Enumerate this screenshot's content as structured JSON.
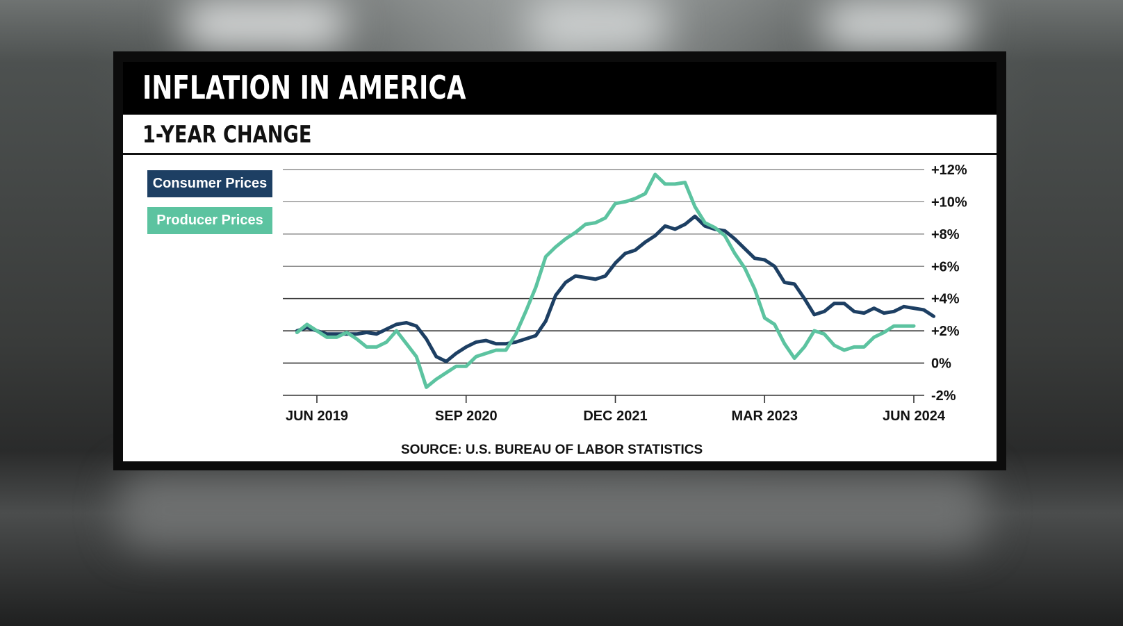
{
  "header": {
    "title": "INFLATION IN AMERICA",
    "subtitle": "1-YEAR CHANGE"
  },
  "legend": {
    "consumer_label": "Consumer Prices",
    "producer_label": "Producer Prices"
  },
  "source": "SOURCE: U.S. BUREAU OF LABOR STATISTICS",
  "colors": {
    "consumer": "#1d3f63",
    "producer": "#5cc3a0",
    "header_bg": "#000000",
    "grid": "#333333"
  },
  "chart_data": {
    "type": "line",
    "title": "INFLATION IN AMERICA",
    "subtitle": "1-YEAR CHANGE",
    "x_start": "2019-04",
    "x_end": "2024-07",
    "x_ticks": [
      {
        "date": "2019-06",
        "label": "JUN 2019"
      },
      {
        "date": "2020-09",
        "label": "SEP 2020"
      },
      {
        "date": "2021-12",
        "label": "DEC 2021"
      },
      {
        "date": "2023-03",
        "label": "MAR 2023"
      },
      {
        "date": "2024-06",
        "label": "JUN 2024"
      }
    ],
    "y_ticks": [
      {
        "value": 12,
        "label": "+12%"
      },
      {
        "value": 10,
        "label": "+10%"
      },
      {
        "value": 8,
        "label": "+8%"
      },
      {
        "value": 6,
        "label": "+6%"
      },
      {
        "value": 4,
        "label": "+4%"
      },
      {
        "value": 2,
        "label": "+2%"
      },
      {
        "value": 0,
        "label": "0%"
      },
      {
        "value": -2,
        "label": "-2%"
      }
    ],
    "ylim": [
      -2,
      12
    ],
    "grid": true,
    "legend_position": "top-left",
    "series": [
      {
        "name": "Consumer Prices",
        "color": "#1d3f63",
        "points": [
          [
            "2019-04",
            2.0
          ],
          [
            "2019-05",
            2.2
          ],
          [
            "2019-06",
            2.0
          ],
          [
            "2019-07",
            1.8
          ],
          [
            "2019-08",
            1.8
          ],
          [
            "2019-09",
            1.8
          ],
          [
            "2019-10",
            1.8
          ],
          [
            "2019-11",
            1.9
          ],
          [
            "2019-12",
            1.8
          ],
          [
            "2020-01",
            2.1
          ],
          [
            "2020-02",
            2.4
          ],
          [
            "2020-03",
            2.5
          ],
          [
            "2020-04",
            2.3
          ],
          [
            "2020-05",
            1.5
          ],
          [
            "2020-06",
            0.4
          ],
          [
            "2020-07",
            0.1
          ],
          [
            "2020-08",
            0.6
          ],
          [
            "2020-09",
            1.0
          ],
          [
            "2020-10",
            1.3
          ],
          [
            "2020-11",
            1.4
          ],
          [
            "2020-12",
            1.2
          ],
          [
            "2021-01",
            1.2
          ],
          [
            "2021-02",
            1.3
          ],
          [
            "2021-03",
            1.5
          ],
          [
            "2021-04",
            1.7
          ],
          [
            "2021-05",
            2.6
          ],
          [
            "2021-06",
            4.2
          ],
          [
            "2021-07",
            5.0
          ],
          [
            "2021-08",
            5.4
          ],
          [
            "2021-09",
            5.3
          ],
          [
            "2021-10",
            5.2
          ],
          [
            "2021-11",
            5.4
          ],
          [
            "2021-12",
            6.2
          ],
          [
            "2022-01",
            6.8
          ],
          [
            "2022-02",
            7.0
          ],
          [
            "2022-03",
            7.5
          ],
          [
            "2022-04",
            7.9
          ],
          [
            "2022-05",
            8.5
          ],
          [
            "2022-06",
            8.3
          ],
          [
            "2022-07",
            8.6
          ],
          [
            "2022-08",
            9.1
          ],
          [
            "2022-09",
            8.5
          ],
          [
            "2022-10",
            8.3
          ],
          [
            "2022-11",
            8.2
          ],
          [
            "2022-12",
            7.7
          ],
          [
            "2023-01",
            7.1
          ],
          [
            "2023-02",
            6.5
          ],
          [
            "2023-03",
            6.4
          ],
          [
            "2023-04",
            6.0
          ],
          [
            "2023-05",
            5.0
          ],
          [
            "2023-06",
            4.9
          ],
          [
            "2023-07",
            4.0
          ],
          [
            "2023-08",
            3.0
          ],
          [
            "2023-09",
            3.2
          ],
          [
            "2023-10",
            3.7
          ],
          [
            "2023-11",
            3.7
          ],
          [
            "2023-12",
            3.2
          ],
          [
            "2024-01",
            3.1
          ],
          [
            "2024-02",
            3.4
          ],
          [
            "2024-03",
            3.1
          ],
          [
            "2024-04",
            3.2
          ],
          [
            "2024-05",
            3.5
          ],
          [
            "2024-06",
            3.4
          ],
          [
            "2024-07",
            3.3
          ],
          [
            "2024-08",
            2.9
          ]
        ]
      },
      {
        "name": "Producer Prices",
        "color": "#5cc3a0",
        "points": [
          [
            "2019-04",
            1.9
          ],
          [
            "2019-05",
            2.4
          ],
          [
            "2019-06",
            2.0
          ],
          [
            "2019-07",
            1.6
          ],
          [
            "2019-08",
            1.6
          ],
          [
            "2019-09",
            1.9
          ],
          [
            "2019-10",
            1.5
          ],
          [
            "2019-11",
            1.0
          ],
          [
            "2019-12",
            1.0
          ],
          [
            "2020-01",
            1.3
          ],
          [
            "2020-02",
            2.0
          ],
          [
            "2020-03",
            1.2
          ],
          [
            "2020-04",
            0.4
          ],
          [
            "2020-05",
            -1.5
          ],
          [
            "2020-06",
            -1.0
          ],
          [
            "2020-07",
            -0.6
          ],
          [
            "2020-08",
            -0.2
          ],
          [
            "2020-09",
            -0.2
          ],
          [
            "2020-10",
            0.4
          ],
          [
            "2020-11",
            0.6
          ],
          [
            "2020-12",
            0.8
          ],
          [
            "2021-01",
            0.8
          ],
          [
            "2021-02",
            1.8
          ],
          [
            "2021-03",
            3.2
          ],
          [
            "2021-04",
            4.7
          ],
          [
            "2021-05",
            6.6
          ],
          [
            "2021-06",
            7.2
          ],
          [
            "2021-07",
            7.7
          ],
          [
            "2021-08",
            8.1
          ],
          [
            "2021-09",
            8.6
          ],
          [
            "2021-10",
            8.7
          ],
          [
            "2021-11",
            9.0
          ],
          [
            "2021-12",
            9.9
          ],
          [
            "2022-01",
            10.0
          ],
          [
            "2022-02",
            10.2
          ],
          [
            "2022-03",
            10.5
          ],
          [
            "2022-04",
            11.7
          ],
          [
            "2022-05",
            11.1
          ],
          [
            "2022-06",
            11.1
          ],
          [
            "2022-07",
            11.2
          ],
          [
            "2022-08",
            9.7
          ],
          [
            "2022-09",
            8.7
          ],
          [
            "2022-10",
            8.4
          ],
          [
            "2022-11",
            7.9
          ],
          [
            "2022-12",
            6.8
          ],
          [
            "2023-01",
            5.9
          ],
          [
            "2023-02",
            4.6
          ],
          [
            "2023-03",
            2.8
          ],
          [
            "2023-04",
            2.4
          ],
          [
            "2023-05",
            1.2
          ],
          [
            "2023-06",
            0.3
          ],
          [
            "2023-07",
            1.0
          ],
          [
            "2023-08",
            2.0
          ],
          [
            "2023-09",
            1.8
          ],
          [
            "2023-10",
            1.1
          ],
          [
            "2023-11",
            0.8
          ],
          [
            "2023-12",
            1.0
          ],
          [
            "2024-01",
            1.0
          ],
          [
            "2024-02",
            1.6
          ],
          [
            "2024-03",
            1.9
          ],
          [
            "2024-04",
            2.3
          ],
          [
            "2024-05",
            2.3
          ],
          [
            "2024-06",
            2.3
          ]
        ]
      }
    ]
  }
}
